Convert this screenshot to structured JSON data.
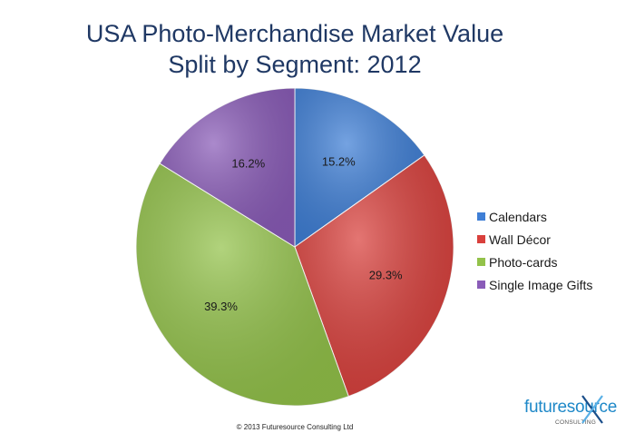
{
  "chart_data": {
    "type": "pie",
    "title": [
      "USA Photo-Merchandise Market Value",
      "Split by Segment: 2012"
    ],
    "categories": [
      "Calendars",
      "Wall Décor",
      "Photo-cards",
      "Single Image Gifts"
    ],
    "values": [
      15.2,
      29.3,
      39.3,
      16.2
    ],
    "labels": [
      "15.2%",
      "29.3%",
      "39.3%",
      "16.2%"
    ],
    "colors": [
      "#3f7fd6",
      "#d9403c",
      "#93c24a",
      "#8a5cb8"
    ],
    "legend_position": "right"
  },
  "footer": {
    "copyright": "© 2013 Futuresource Consulting Ltd",
    "brand_name": "futuresource",
    "brand_sub": "CONSULTING"
  }
}
